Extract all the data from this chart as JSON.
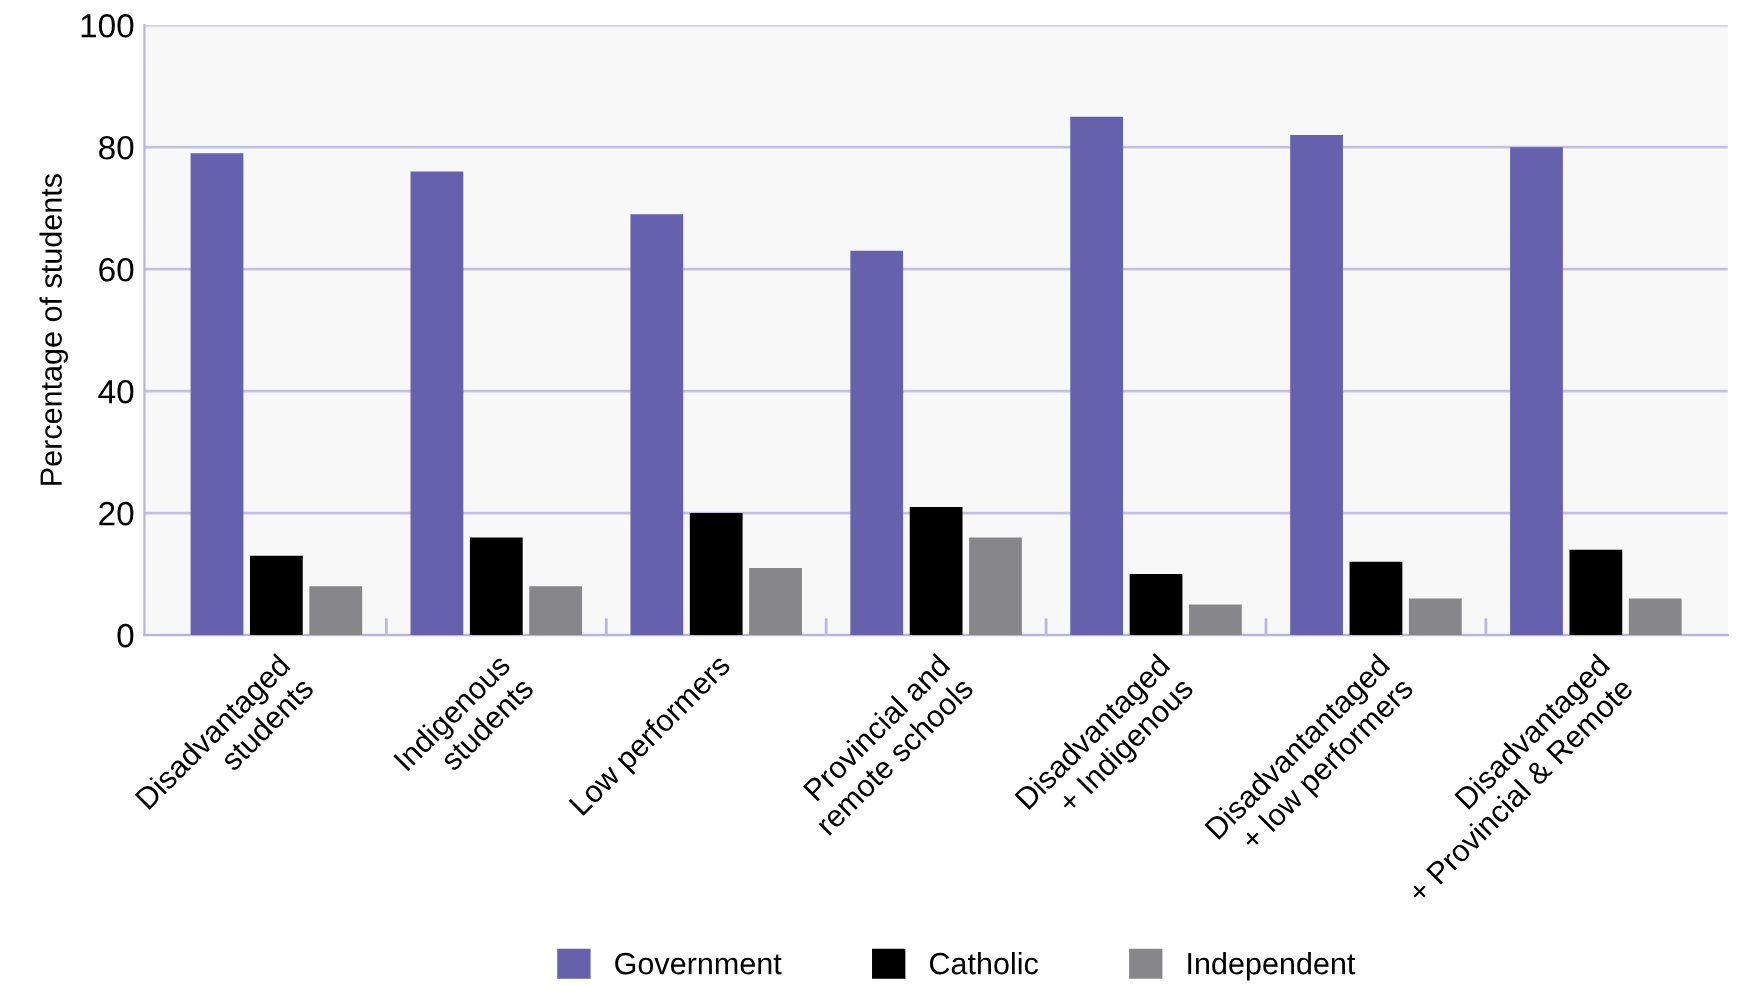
{
  "chart_data": {
    "type": "bar",
    "ylabel": "Percentage of students",
    "categories": [
      "Disadvantaged\nstudents",
      "Indigenous\nstudents",
      "Low performers",
      "Provincial and\nremote schools",
      "Disadvantaged\n+ Indigenous",
      "Disadvantantaged\n+ low performers",
      "Disadvantaged\n+ Provincial & Remote"
    ],
    "series": [
      {
        "name": "Government",
        "color": "#6561ad",
        "values": [
          79,
          76,
          69,
          63,
          85,
          82,
          80
        ]
      },
      {
        "name": "Catholic",
        "color": "#000000",
        "values": [
          13,
          16,
          20,
          21,
          10,
          12,
          14
        ]
      },
      {
        "name": "Independent",
        "color": "#87878a",
        "values": [
          8,
          8,
          11,
          16,
          5,
          6,
          6
        ]
      }
    ],
    "ylim": [
      0,
      100
    ],
    "yticks": [
      0,
      20,
      40,
      60,
      80,
      100
    ],
    "grid": "y",
    "legend": "bottom"
  }
}
